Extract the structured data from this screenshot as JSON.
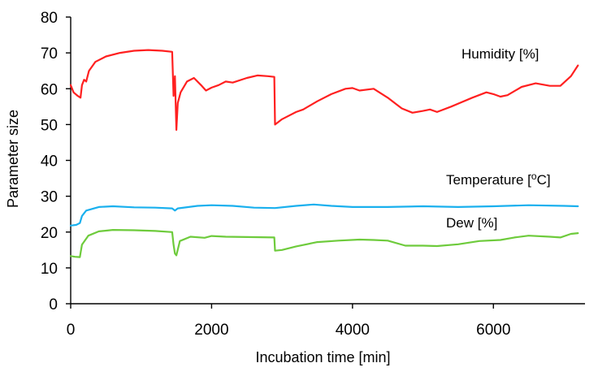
{
  "chart_data": {
    "type": "line",
    "xlabel": "Incubation time [min]",
    "ylabel": "Parameter size",
    "xlim": [
      0,
      7300
    ],
    "ylim": [
      0,
      80
    ],
    "xticks": [
      0,
      2000,
      4000,
      6000
    ],
    "xtick_labels": [
      "0",
      "2000",
      "4000",
      "6000"
    ],
    "yticks": [
      0,
      10,
      20,
      30,
      40,
      50,
      60,
      70,
      80
    ],
    "ytick_labels": [
      "0",
      "10",
      "20",
      "30",
      "40",
      "50",
      "60",
      "70",
      "80"
    ],
    "grid": false,
    "legend": "inline labels",
    "series": [
      {
        "name": "Humidity [%]",
        "color": "#ff2020",
        "label_text": "Humidity [%]",
        "label_position": "upper-right",
        "points": [
          [
            0,
            61
          ],
          [
            40,
            59
          ],
          [
            100,
            58
          ],
          [
            140,
            57.5
          ],
          [
            160,
            61
          ],
          [
            190,
            62.5
          ],
          [
            220,
            62
          ],
          [
            260,
            65
          ],
          [
            350,
            67.5
          ],
          [
            500,
            69
          ],
          [
            700,
            70
          ],
          [
            900,
            70.6
          ],
          [
            1100,
            70.8
          ],
          [
            1300,
            70.6
          ],
          [
            1440,
            70.3
          ],
          [
            1460,
            58
          ],
          [
            1480,
            63.5
          ],
          [
            1500,
            48.5
          ],
          [
            1520,
            56
          ],
          [
            1560,
            59
          ],
          [
            1650,
            62
          ],
          [
            1750,
            63
          ],
          [
            1850,
            61
          ],
          [
            1920,
            59.5
          ],
          [
            2000,
            60.3
          ],
          [
            2100,
            61
          ],
          [
            2200,
            62
          ],
          [
            2300,
            61.7
          ],
          [
            2500,
            63
          ],
          [
            2650,
            63.7
          ],
          [
            2800,
            63.5
          ],
          [
            2890,
            63.3
          ],
          [
            2900,
            50
          ],
          [
            3000,
            51.5
          ],
          [
            3200,
            53.5
          ],
          [
            3300,
            54.2
          ],
          [
            3500,
            56.5
          ],
          [
            3700,
            58.5
          ],
          [
            3900,
            60
          ],
          [
            4000,
            60.2
          ],
          [
            4100,
            59.5
          ],
          [
            4300,
            60
          ],
          [
            4500,
            57.5
          ],
          [
            4700,
            54.5
          ],
          [
            4850,
            53.3
          ],
          [
            5000,
            53.8
          ],
          [
            5100,
            54.2
          ],
          [
            5200,
            53.5
          ],
          [
            5400,
            55
          ],
          [
            5700,
            57.5
          ],
          [
            5900,
            59
          ],
          [
            6000,
            58.5
          ],
          [
            6100,
            57.8
          ],
          [
            6200,
            58.2
          ],
          [
            6400,
            60.5
          ],
          [
            6600,
            61.5
          ],
          [
            6800,
            60.8
          ],
          [
            6950,
            60.8
          ],
          [
            7100,
            63.5
          ],
          [
            7200,
            66.5
          ]
        ]
      },
      {
        "name": "Temperature [°C]",
        "color": "#1ab0ee",
        "label_text": "Temperature [",
        "label_sup": "o",
        "label_suffix": "C]",
        "label_position": "middle-right",
        "points": [
          [
            0,
            21.8
          ],
          [
            80,
            22
          ],
          [
            130,
            22.5
          ],
          [
            160,
            24.5
          ],
          [
            220,
            26
          ],
          [
            400,
            27
          ],
          [
            600,
            27.2
          ],
          [
            900,
            26.9
          ],
          [
            1200,
            26.8
          ],
          [
            1440,
            26.6
          ],
          [
            1480,
            26
          ],
          [
            1520,
            26.6
          ],
          [
            1800,
            27.3
          ],
          [
            2000,
            27.5
          ],
          [
            2300,
            27.3
          ],
          [
            2600,
            26.8
          ],
          [
            2900,
            26.7
          ],
          [
            3200,
            27.3
          ],
          [
            3450,
            27.7
          ],
          [
            3700,
            27.3
          ],
          [
            4000,
            27
          ],
          [
            4500,
            27
          ],
          [
            5000,
            27.2
          ],
          [
            5500,
            27
          ],
          [
            6000,
            27.2
          ],
          [
            6500,
            27.5
          ],
          [
            7000,
            27.3
          ],
          [
            7200,
            27.2
          ]
        ]
      },
      {
        "name": "Dew [%]",
        "color": "#6ecb3c",
        "label_text": "Dew [%]",
        "label_position": "lower-right",
        "points": [
          [
            0,
            13.3
          ],
          [
            60,
            13.1
          ],
          [
            130,
            13
          ],
          [
            160,
            16.5
          ],
          [
            250,
            19
          ],
          [
            400,
            20.2
          ],
          [
            600,
            20.6
          ],
          [
            900,
            20.5
          ],
          [
            1200,
            20.3
          ],
          [
            1440,
            20
          ],
          [
            1460,
            16.5
          ],
          [
            1480,
            14
          ],
          [
            1500,
            13.5
          ],
          [
            1550,
            17.5
          ],
          [
            1700,
            18.7
          ],
          [
            1900,
            18.4
          ],
          [
            2000,
            18.9
          ],
          [
            2200,
            18.7
          ],
          [
            2500,
            18.6
          ],
          [
            2890,
            18.5
          ],
          [
            2900,
            14.8
          ],
          [
            3000,
            15
          ],
          [
            3200,
            16
          ],
          [
            3500,
            17.2
          ],
          [
            3800,
            17.6
          ],
          [
            4100,
            17.9
          ],
          [
            4300,
            17.8
          ],
          [
            4500,
            17.6
          ],
          [
            4750,
            16.2
          ],
          [
            5000,
            16.2
          ],
          [
            5200,
            16.1
          ],
          [
            5500,
            16.6
          ],
          [
            5800,
            17.5
          ],
          [
            6100,
            17.8
          ],
          [
            6300,
            18.5
          ],
          [
            6500,
            19
          ],
          [
            6800,
            18.7
          ],
          [
            6950,
            18.5
          ],
          [
            7100,
            19.5
          ],
          [
            7200,
            19.7
          ]
        ]
      }
    ]
  }
}
